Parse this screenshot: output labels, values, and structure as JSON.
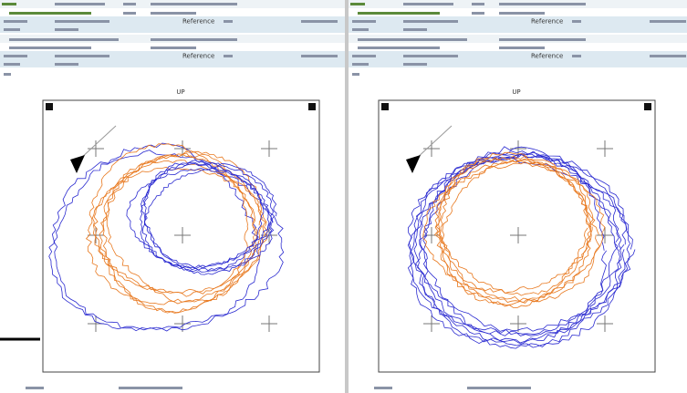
{
  "panels": [
    {
      "header": {
        "reference": "Reference"
      },
      "orientation_label": "UP"
    },
    {
      "header": {
        "reference": "Reference"
      },
      "orientation_label": "UP"
    }
  ]
}
